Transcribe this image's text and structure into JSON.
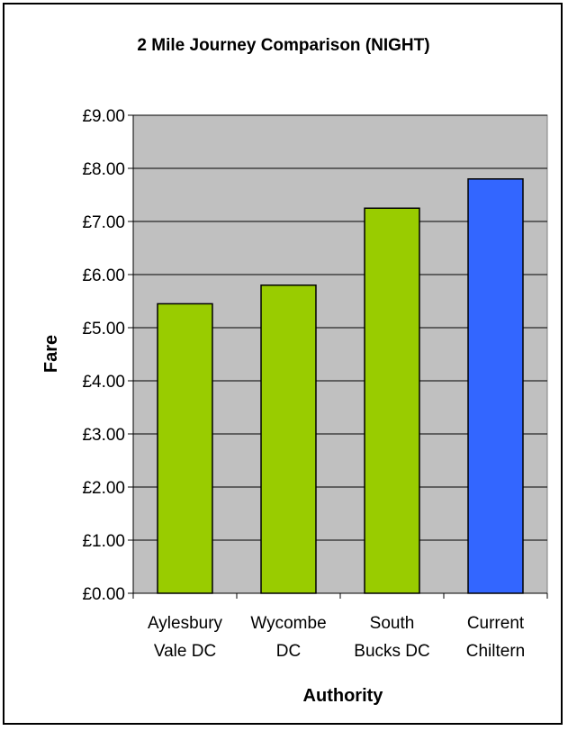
{
  "chart_data": {
    "type": "bar",
    "title": "2 Mile Journey Comparison (NIGHT)",
    "xlabel": "Authority",
    "ylabel": "Fare",
    "categories": [
      [
        "Aylesbury",
        "Vale DC"
      ],
      [
        "Wycombe",
        "DC"
      ],
      [
        "South",
        "Bucks DC"
      ],
      [
        "Current",
        "Chiltern"
      ]
    ],
    "values": [
      5.45,
      5.8,
      7.25,
      7.8
    ],
    "bar_colors": [
      "#99cc00",
      "#99cc00",
      "#99cc00",
      "#3366ff"
    ],
    "ylim": [
      0,
      9
    ],
    "yticks": [
      0,
      1,
      2,
      3,
      4,
      5,
      6,
      7,
      8,
      9
    ],
    "ytick_labels": [
      "£0.00",
      "£1.00",
      "£2.00",
      "£3.00",
      "£4.00",
      "£5.00",
      "£6.00",
      "£7.00",
      "£8.00",
      "£9.00"
    ],
    "plot_background": "#c0c0c0",
    "grid": true,
    "legend": "none"
  }
}
